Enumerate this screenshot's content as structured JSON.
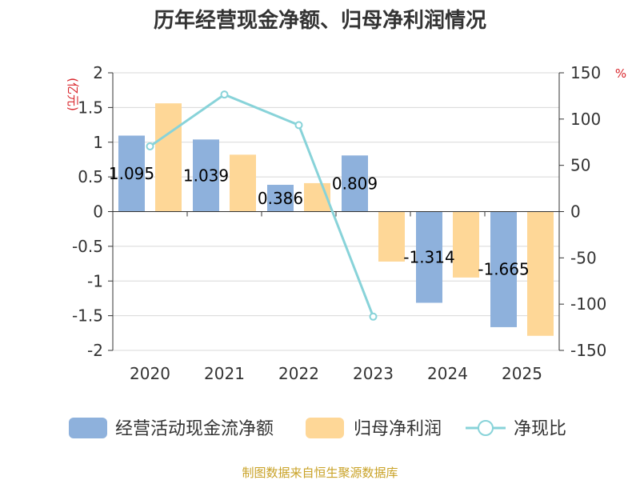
{
  "chart_data": {
    "type": "bar",
    "title": "历年经营现金净额、归母净利润情况",
    "categories": [
      "2020",
      "2021",
      "2022",
      "2023",
      "2024",
      "2025"
    ],
    "series": [
      {
        "name": "经营活动现金流净额",
        "type": "bar",
        "axis": "left",
        "color": "#8eb1dc",
        "values": [
          1.095,
          1.039,
          0.386,
          0.809,
          -1.314,
          -1.665
        ],
        "labels": [
          "1.095",
          "1.039",
          "0.386",
          "0.809",
          "-1.314",
          "-1.665"
        ]
      },
      {
        "name": "归母净利润",
        "type": "bar",
        "axis": "left",
        "color": "#fed797",
        "values": [
          1.56,
          0.82,
          0.41,
          -0.72,
          -0.95,
          -1.79
        ]
      },
      {
        "name": "净现比",
        "type": "line",
        "axis": "right",
        "color": "#88d3d9",
        "values": [
          70.5,
          126.5,
          93.5,
          -113.5,
          null,
          null
        ]
      }
    ],
    "left_axis": {
      "unit": "(亿元)",
      "min": -2,
      "max": 2,
      "ticks": [
        2,
        1.5,
        1,
        0.5,
        0,
        -0.5,
        -1,
        -1.5,
        -2
      ],
      "tick_labels": [
        "2",
        "1.5",
        "1",
        "0.5",
        "0",
        "-0.5",
        "-1",
        "-1.5",
        "-2"
      ]
    },
    "right_axis": {
      "unit": "%",
      "min": -150,
      "max": 150,
      "ticks": [
        150,
        100,
        50,
        0,
        -50,
        -100,
        -150
      ],
      "tick_labels": [
        "150",
        "100",
        "50",
        "0",
        "-50",
        "-100",
        "-150"
      ]
    },
    "grid": true,
    "legend_position": "bottom",
    "source": "制图数据来自恒生聚源数据库",
    "colors": {
      "unit": "#d9262c",
      "source": "#c9a227",
      "axis": "#333333",
      "grid": "#d8d8d8"
    }
  }
}
